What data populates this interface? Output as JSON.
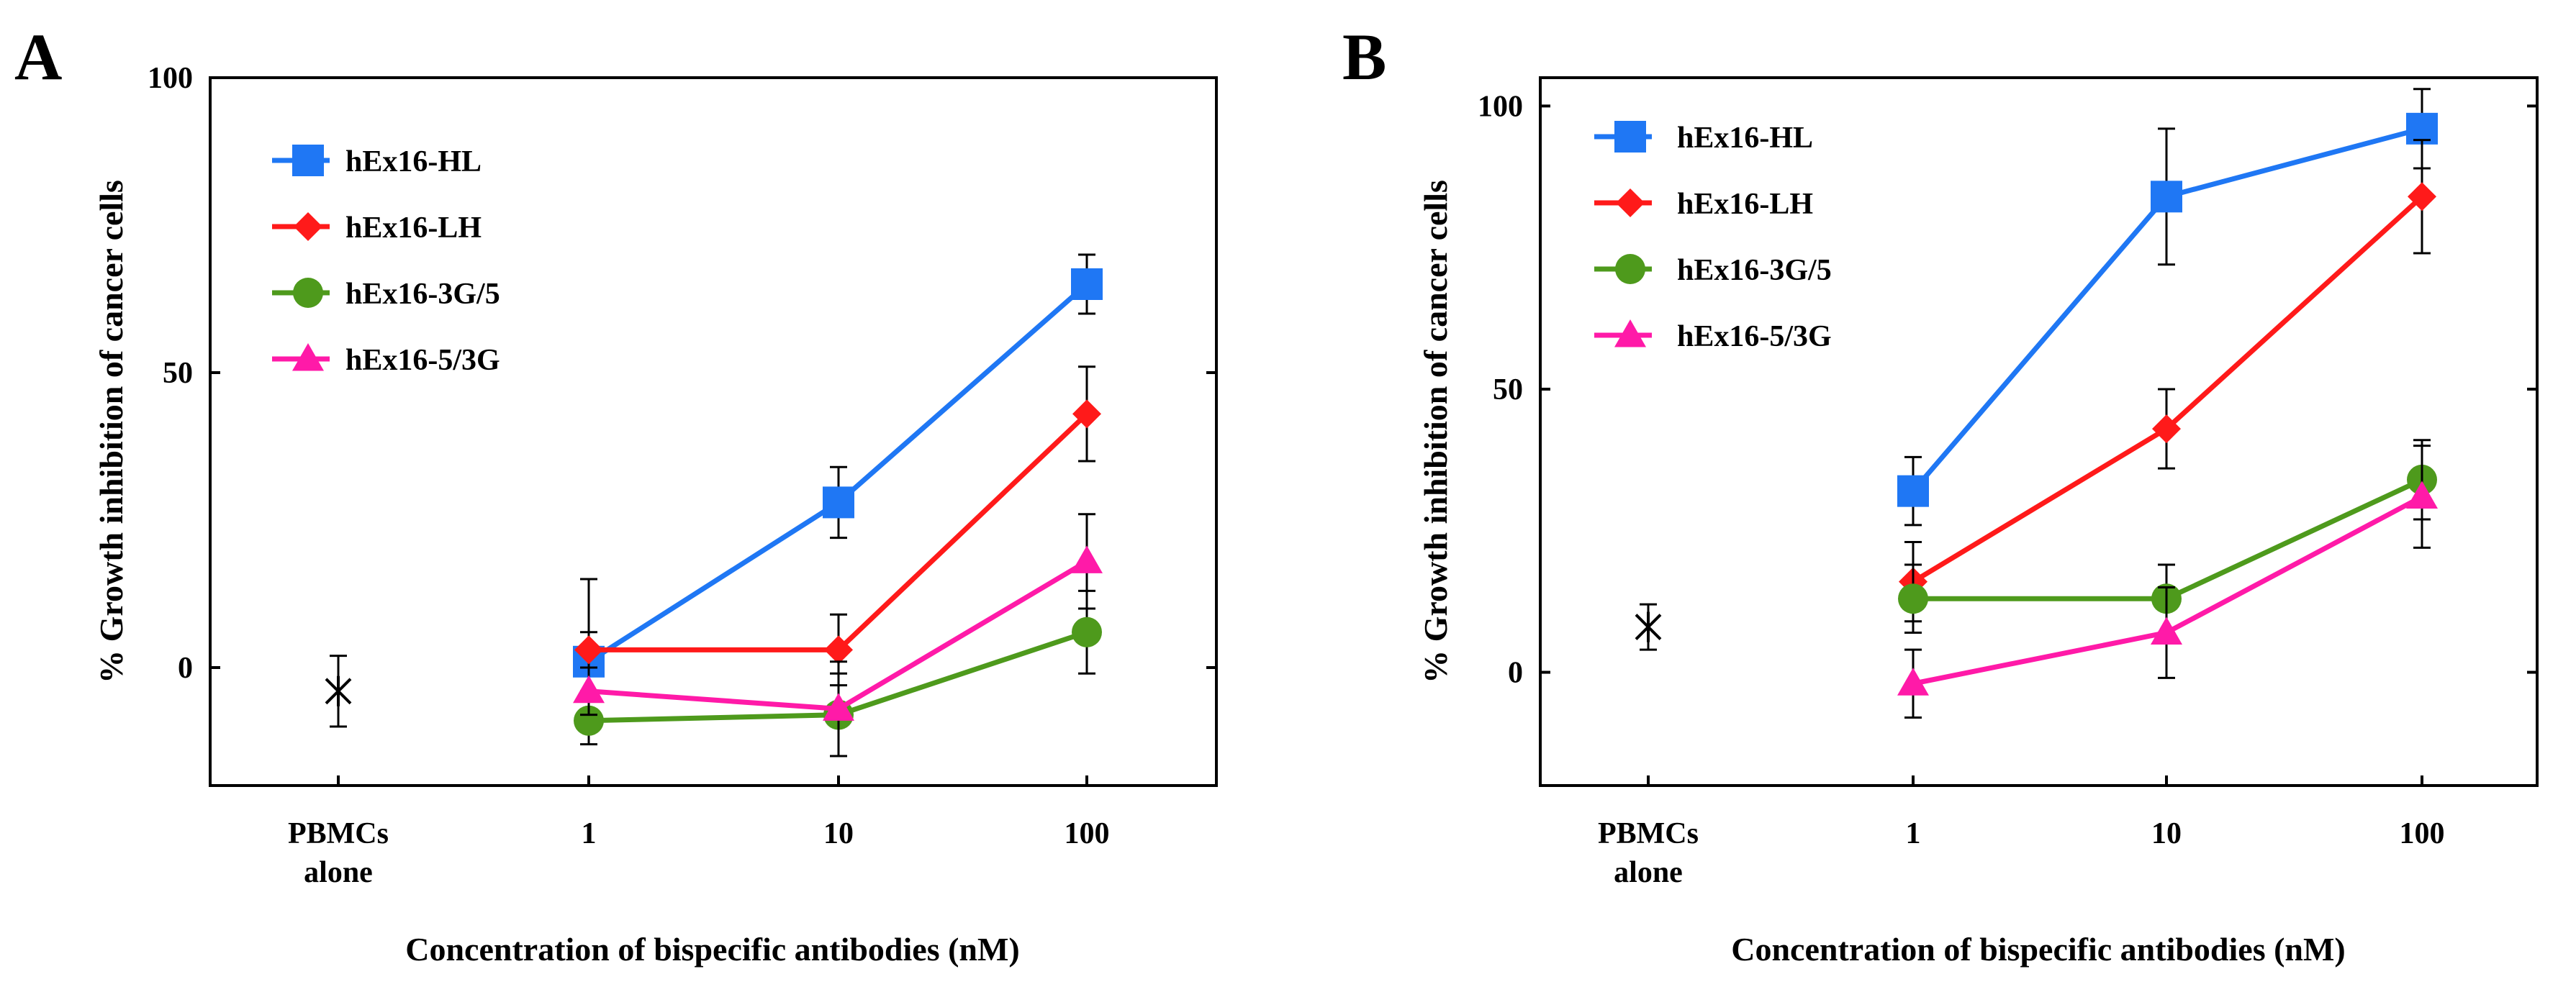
{
  "chart_data": [
    {
      "type": "line",
      "panel": "A",
      "title": "",
      "xlabel": "Concentration of bispecific antibodies (nM)",
      "ylabel": "% Growth inhibition of cancer cells",
      "categories": [
        "PBMCs\nalone",
        "1",
        "10",
        "100"
      ],
      "yticks": [
        "0",
        "50",
        "100"
      ],
      "ylim": [
        -20,
        100
      ],
      "legend_position": "top-left",
      "series": [
        {
          "name": "hEx16-HL",
          "color": "#1f77f4",
          "marker": "square",
          "values": [
            null,
            1,
            28,
            65
          ],
          "err": [
            null,
            5,
            6,
            5
          ]
        },
        {
          "name": "hEx16-LH",
          "color": "#ff1a1a",
          "marker": "diamond",
          "values": [
            null,
            3,
            3,
            43
          ],
          "err": [
            null,
            12,
            6,
            8
          ]
        },
        {
          "name": "hEx16-3G/5",
          "color": "#4e9a1c",
          "marker": "circle",
          "values": [
            null,
            -9,
            -8,
            6
          ],
          "err": [
            null,
            4,
            7,
            7
          ]
        },
        {
          "name": "hEx16-5/3G",
          "color": "#ff1aa8",
          "marker": "triangle",
          "values": [
            null,
            -4,
            -7,
            18
          ],
          "err": [
            null,
            4,
            8,
            8
          ]
        }
      ],
      "control": {
        "label": "PBMCs alone",
        "value": -4,
        "err": 6,
        "marker": "asterisk",
        "color": "#000000"
      }
    },
    {
      "type": "line",
      "panel": "B",
      "title": "",
      "xlabel": "Concentration of bispecific antibodies (nM)",
      "ylabel": "% Growth inhibition of cancer cells",
      "categories": [
        "PBMCs\nalone",
        "1",
        "10",
        "100"
      ],
      "yticks": [
        "0",
        "50",
        "100"
      ],
      "ylim": [
        -20,
        105
      ],
      "legend_position": "top-left",
      "series": [
        {
          "name": "hEx16-HL",
          "color": "#1f77f4",
          "marker": "square",
          "values": [
            null,
            32,
            84,
            96
          ],
          "err": [
            null,
            6,
            12,
            7
          ]
        },
        {
          "name": "hEx16-LH",
          "color": "#ff1a1a",
          "marker": "diamond",
          "values": [
            null,
            16,
            43,
            84
          ],
          "err": [
            null,
            7,
            7,
            10
          ]
        },
        {
          "name": "hEx16-3G/5",
          "color": "#4e9a1c",
          "marker": "circle",
          "values": [
            null,
            13,
            13,
            34
          ],
          "err": [
            null,
            6,
            6,
            7
          ]
        },
        {
          "name": "hEx16-5/3G",
          "color": "#ff1aa8",
          "marker": "triangle",
          "values": [
            null,
            -2,
            7,
            31
          ],
          "err": [
            null,
            6,
            8,
            9
          ]
        }
      ],
      "control": {
        "label": "PBMCs alone",
        "value": 8,
        "err": 4,
        "marker": "asterisk",
        "color": "#000000"
      }
    }
  ]
}
